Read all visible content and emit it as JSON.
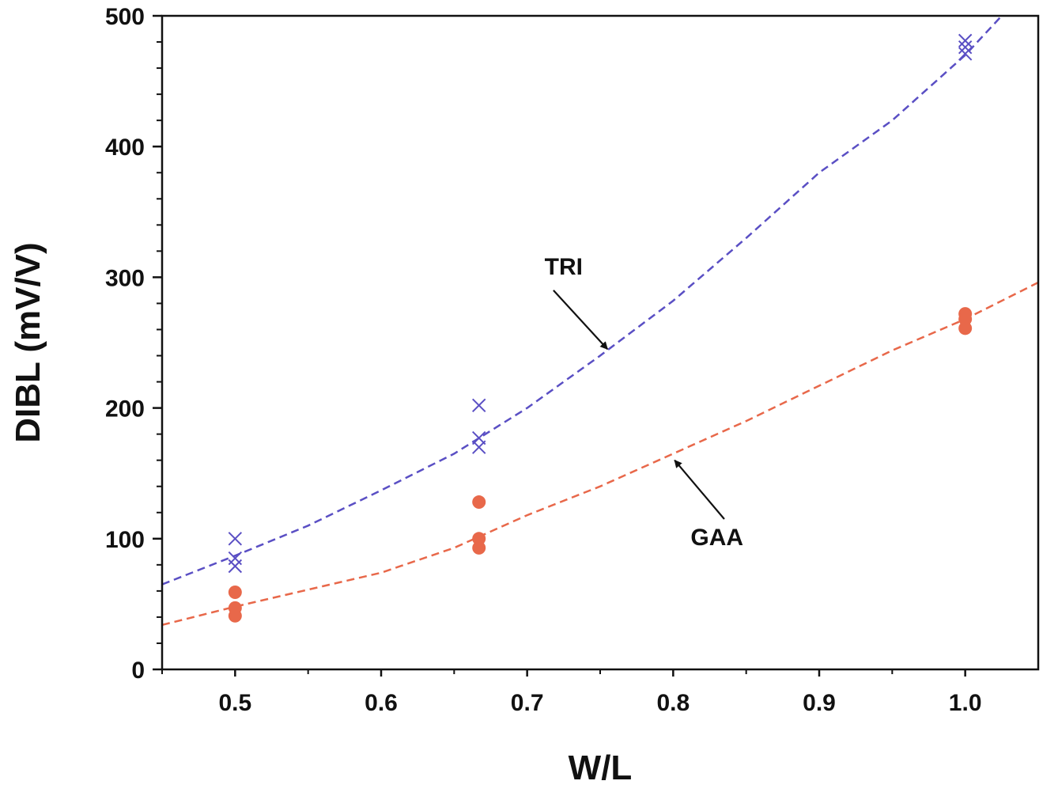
{
  "chart_data": {
    "type": "scatter",
    "title": "",
    "xlabel": "W/L",
    "ylabel": "DIBL  (mV/V)",
    "xlim": [
      0.45,
      1.05
    ],
    "ylim": [
      0,
      500
    ],
    "xticks": [
      0.5,
      0.6,
      0.7,
      0.8,
      0.9,
      1.0
    ],
    "xtick_labels": [
      "0.5",
      "0.6",
      "0.7",
      "0.8",
      "0.9",
      "1.0"
    ],
    "yticks": [
      0,
      100,
      200,
      300,
      400,
      500
    ],
    "ytick_labels": [
      "0",
      "100",
      "200",
      "300",
      "400",
      "500"
    ],
    "grid": false,
    "legend": "none",
    "series": [
      {
        "name": "TRI",
        "marker": "x",
        "color": "#5a4fc4",
        "points": [
          {
            "x": 0.5,
            "y": 100
          },
          {
            "x": 0.5,
            "y": 85
          },
          {
            "x": 0.5,
            "y": 79
          },
          {
            "x": 0.667,
            "y": 202
          },
          {
            "x": 0.667,
            "y": 177
          },
          {
            "x": 0.667,
            "y": 170
          },
          {
            "x": 1.0,
            "y": 481
          },
          {
            "x": 1.0,
            "y": 476
          },
          {
            "x": 1.0,
            "y": 471
          }
        ],
        "fit": {
          "style": "dashed",
          "x": [
            0.45,
            0.5,
            0.55,
            0.6,
            0.65,
            0.7,
            0.75,
            0.8,
            0.85,
            0.9,
            0.95,
            1.0,
            1.025
          ],
          "y": [
            65,
            87,
            110,
            137,
            165,
            200,
            240,
            282,
            330,
            380,
            420,
            470,
            500
          ]
        }
      },
      {
        "name": "GAA",
        "marker": "o",
        "color": "#e8684a",
        "points": [
          {
            "x": 0.5,
            "y": 59
          },
          {
            "x": 0.5,
            "y": 47
          },
          {
            "x": 0.5,
            "y": 41
          },
          {
            "x": 0.667,
            "y": 128
          },
          {
            "x": 0.667,
            "y": 100
          },
          {
            "x": 0.667,
            "y": 93
          },
          {
            "x": 1.0,
            "y": 272
          },
          {
            "x": 1.0,
            "y": 268
          },
          {
            "x": 1.0,
            "y": 261
          }
        ],
        "fit": {
          "style": "dashed",
          "x": [
            0.45,
            0.5,
            0.55,
            0.6,
            0.65,
            0.7,
            0.75,
            0.8,
            0.85,
            0.9,
            0.95,
            1.0,
            1.05
          ],
          "y": [
            34,
            48,
            61,
            74,
            93,
            118,
            140,
            165,
            190,
            217,
            244,
            268,
            296
          ]
        }
      }
    ],
    "annotations": [
      {
        "text": "TRI",
        "series": "TRI",
        "label_at": {
          "x": 0.725,
          "y": 302
        },
        "arrow_from": {
          "x": 0.718,
          "y": 290
        },
        "arrow_to": {
          "x": 0.755,
          "y": 245
        }
      },
      {
        "text": "GAA",
        "series": "GAA",
        "label_at": {
          "x": 0.83,
          "y": 95
        },
        "arrow_from": {
          "x": 0.835,
          "y": 115
        },
        "arrow_to": {
          "x": 0.801,
          "y": 160
        }
      }
    ]
  }
}
